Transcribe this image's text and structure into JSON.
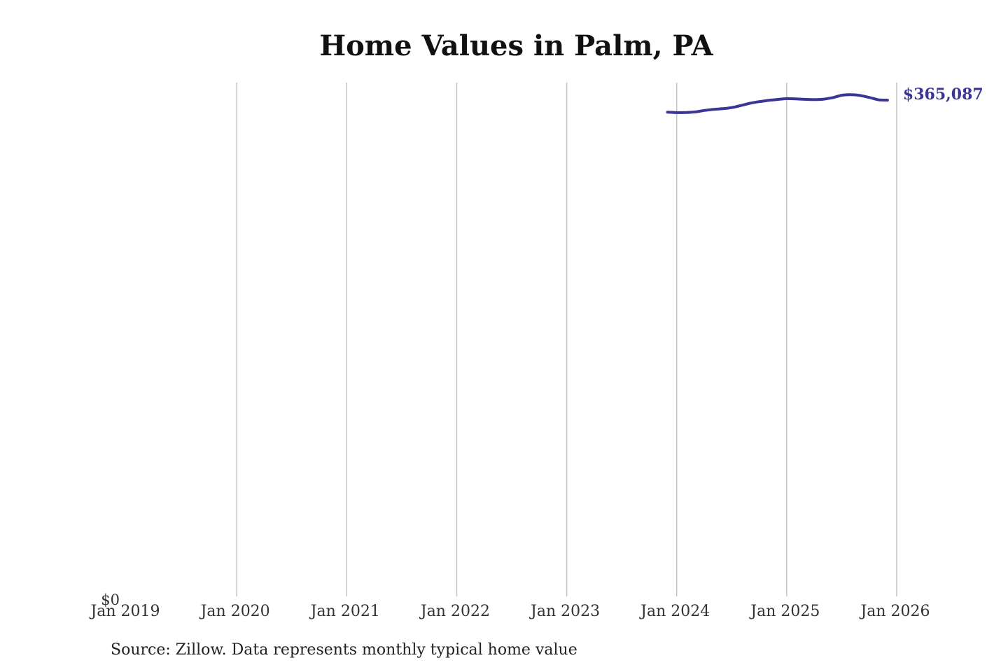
{
  "chart_data": {
    "type": "line",
    "title": "Home Values in Palm, PA",
    "xlabel": "",
    "ylabel": "",
    "x_ticks": [
      "Jan 2019",
      "Jan 2020",
      "Jan 2021",
      "Jan 2022",
      "Jan 2023",
      "Jan 2024",
      "Jan 2025",
      "Jan 2026"
    ],
    "y_ticks": [
      "$0"
    ],
    "xlim": [
      "2019-01",
      "2026-01"
    ],
    "ylim": [
      0,
      378000
    ],
    "grid": "vertical",
    "series": [
      {
        "color": "#3a3596",
        "points": [
          {
            "x": "2023-12",
            "y": 356200
          },
          {
            "x": "2024-01",
            "y": 355900
          },
          {
            "x": "2024-02",
            "y": 356000
          },
          {
            "x": "2024-03",
            "y": 356400
          },
          {
            "x": "2024-04",
            "y": 357500
          },
          {
            "x": "2024-05",
            "y": 358300
          },
          {
            "x": "2024-06",
            "y": 358800
          },
          {
            "x": "2024-07",
            "y": 359600
          },
          {
            "x": "2024-08",
            "y": 361100
          },
          {
            "x": "2024-09",
            "y": 362800
          },
          {
            "x": "2024-10",
            "y": 364000
          },
          {
            "x": "2024-11",
            "y": 364900
          },
          {
            "x": "2024-12",
            "y": 365600
          },
          {
            "x": "2025-01",
            "y": 366200
          },
          {
            "x": "2025-02",
            "y": 366000
          },
          {
            "x": "2025-03",
            "y": 365700
          },
          {
            "x": "2025-04",
            "y": 365500
          },
          {
            "x": "2025-05",
            "y": 365800
          },
          {
            "x": "2025-06",
            "y": 366900
          },
          {
            "x": "2025-07",
            "y": 368700
          },
          {
            "x": "2025-08",
            "y": 369100
          },
          {
            "x": "2025-09",
            "y": 368500
          },
          {
            "x": "2025-10",
            "y": 367100
          },
          {
            "x": "2025-11",
            "y": 365400
          },
          {
            "x": "2025-12",
            "y": 365087
          }
        ]
      }
    ],
    "end_label": "$365,087"
  },
  "source": "Source: Zillow. Data represents monthly typical home value"
}
